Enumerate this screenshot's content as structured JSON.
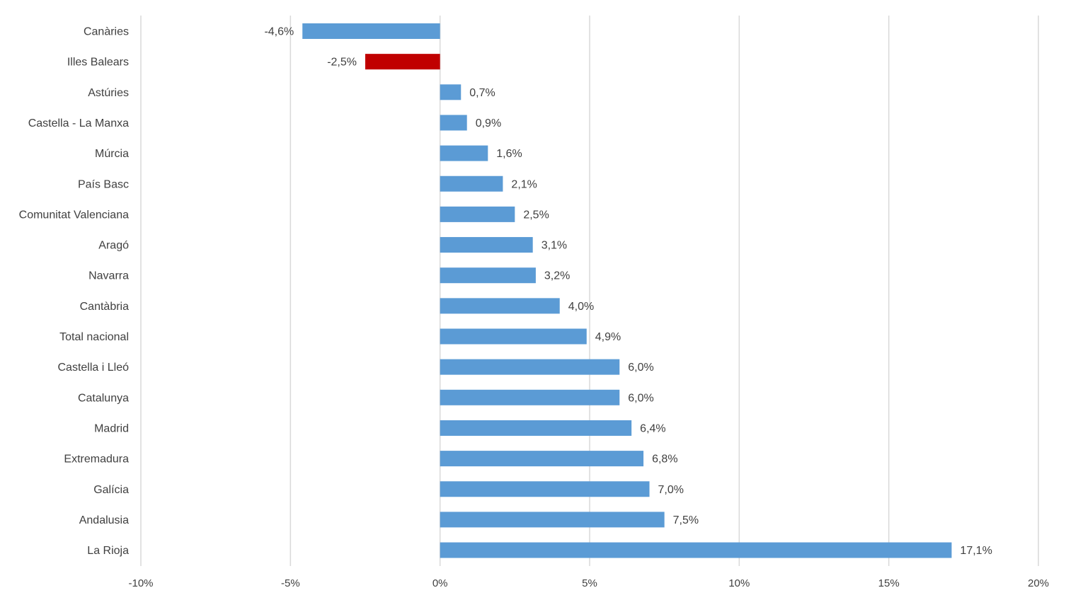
{
  "chart_data": {
    "type": "bar",
    "orientation": "horizontal",
    "categories": [
      "Canàries",
      "Illes Balears",
      "Astúries",
      "Castella - La Manxa",
      "Múrcia",
      "País Basc",
      "Comunitat Valenciana",
      "Aragó",
      "Navarra",
      "Cantàbria",
      "Total nacional",
      "Castella i Lleó",
      "Catalunya",
      "Madrid",
      "Extremadura",
      "Galícia",
      "Andalusia",
      "La Rioja"
    ],
    "values": [
      -4.6,
      -2.5,
      0.7,
      0.9,
      1.6,
      2.1,
      2.5,
      3.1,
      3.2,
      4.0,
      4.9,
      6.0,
      6.0,
      6.4,
      6.8,
      7.0,
      7.5,
      17.1
    ],
    "data_labels": [
      "-4,6%",
      "-2,5%",
      "0,7%",
      "0,9%",
      "1,6%",
      "2,1%",
      "2,5%",
      "3,1%",
      "3,2%",
      "4,0%",
      "4,9%",
      "6,0%",
      "6,0%",
      "6,4%",
      "6,8%",
      "7,0%",
      "7,5%",
      "17,1%"
    ],
    "highlight_category": "Illes Balears",
    "colors": {
      "default": "#5b9bd5",
      "highlight": "#c00000",
      "grid": "#d9d9d9",
      "text": "#404040"
    },
    "xlim": [
      -10,
      20
    ],
    "xticks": [
      -10,
      -5,
      0,
      5,
      10,
      15,
      20
    ],
    "xtick_labels": [
      "-10%",
      "-5%",
      "0%",
      "5%",
      "10%",
      "15%",
      "20%"
    ],
    "grid": true,
    "legend": false,
    "title": "",
    "xlabel": "",
    "ylabel": ""
  }
}
